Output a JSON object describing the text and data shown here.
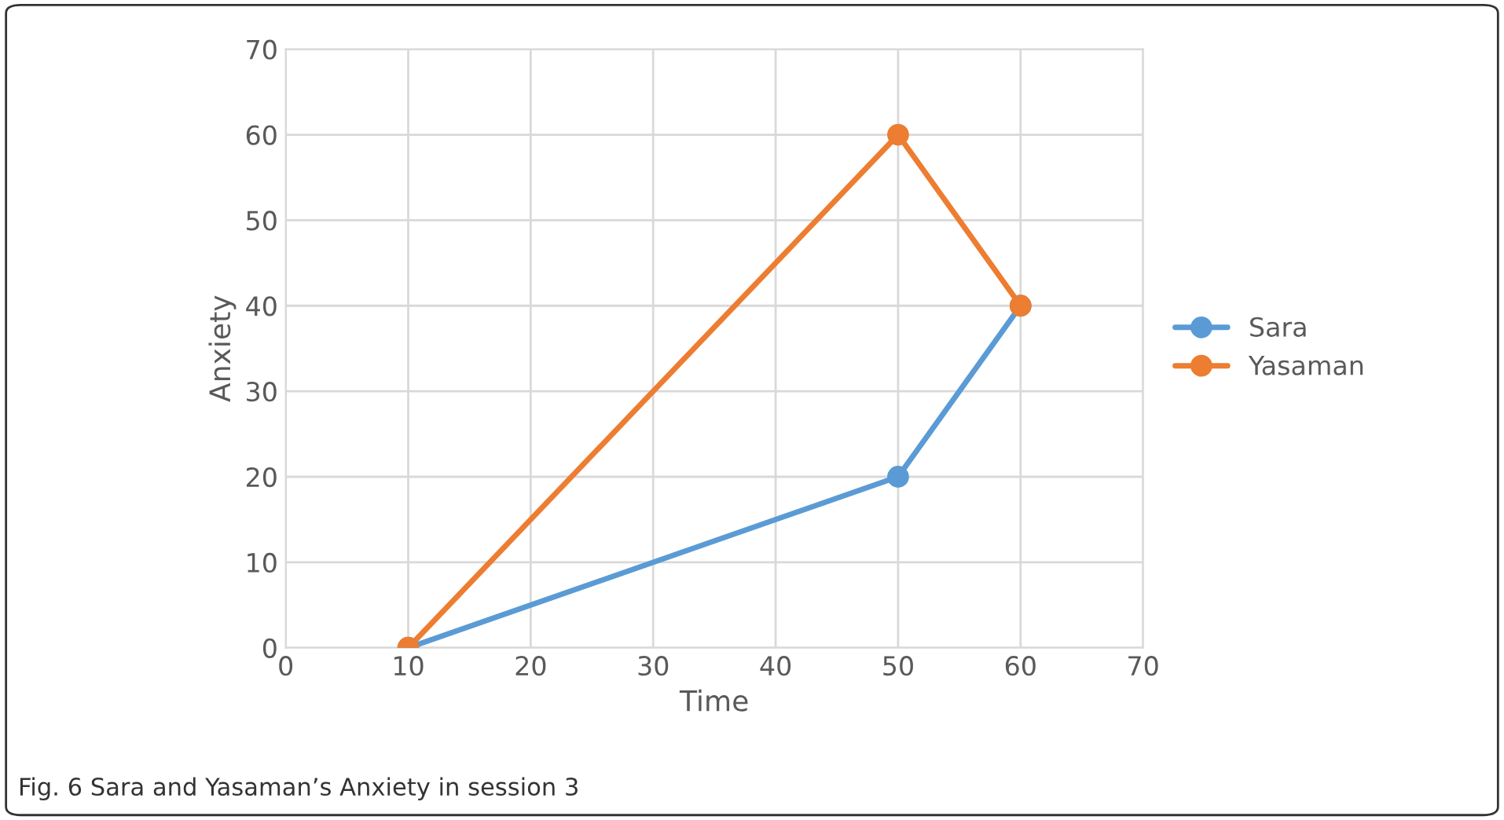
{
  "chart_data": {
    "type": "line",
    "xlabel": "Time",
    "ylabel": "Anxiety",
    "x": [
      10,
      50,
      60
    ],
    "series": [
      {
        "name": "Sara",
        "color": "#5b9bd5",
        "values": [
          0,
          20,
          40
        ]
      },
      {
        "name": "Yasaman",
        "color": "#ed7d31",
        "values": [
          0,
          60,
          40
        ]
      }
    ],
    "xlim": [
      0,
      70
    ],
    "xticks": [
      0,
      10,
      20,
      30,
      40,
      50,
      60,
      70
    ],
    "ylim": [
      0,
      70
    ],
    "yticks": [
      0,
      10,
      20,
      30,
      40,
      50,
      60,
      70
    ],
    "grid": true,
    "legend": "right",
    "marker": "circle",
    "line_style": "solid",
    "annotations": [
      "Fig. 6 Sara and Yasaman’s Anxiety in session 3"
    ]
  }
}
